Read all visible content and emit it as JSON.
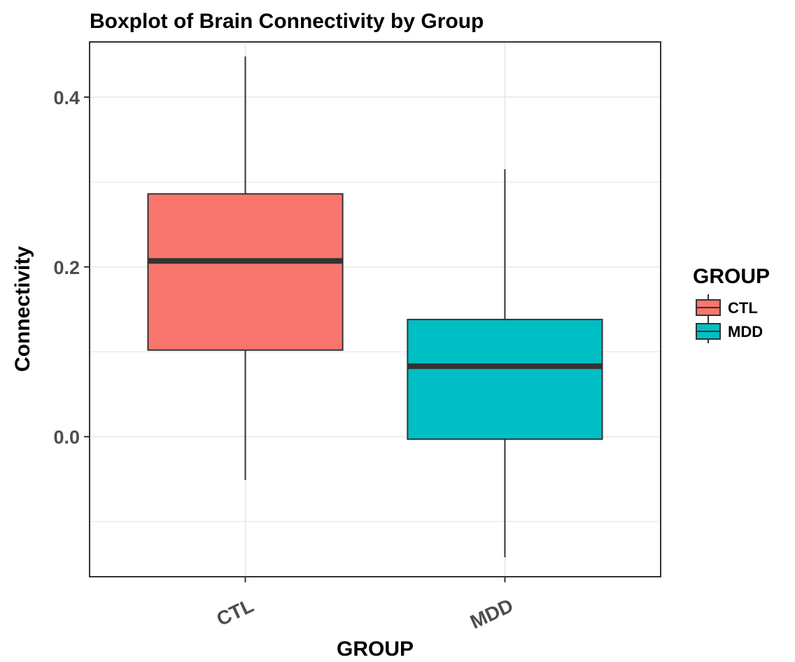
{
  "chart_data": {
    "type": "boxplot",
    "title": "Boxplot of Brain Connectivity by Group",
    "xlabel": "GROUP",
    "ylabel": "Connectivity",
    "ylim": [
      -0.165,
      0.465
    ],
    "y_ticks": [
      0.0,
      0.2,
      0.4
    ],
    "y_tick_labels": [
      "0.0",
      "0.2",
      "0.4"
    ],
    "grid": true,
    "categories": [
      "CTL",
      "MDD"
    ],
    "series": [
      {
        "category": "CTL",
        "min": -0.051,
        "q1": 0.102,
        "median": 0.207,
        "q3": 0.286,
        "max": 0.448,
        "color": "#F8766D"
      },
      {
        "category": "MDD",
        "min": -0.142,
        "q1": -0.003,
        "median": 0.083,
        "q3": 0.138,
        "max": 0.315,
        "color": "#00BFC4"
      }
    ],
    "legend": {
      "title": "GROUP",
      "position": "right",
      "entries": [
        {
          "label": "CTL",
          "color": "#F8766D"
        },
        {
          "label": "MDD",
          "color": "#00BFC4"
        }
      ]
    }
  }
}
